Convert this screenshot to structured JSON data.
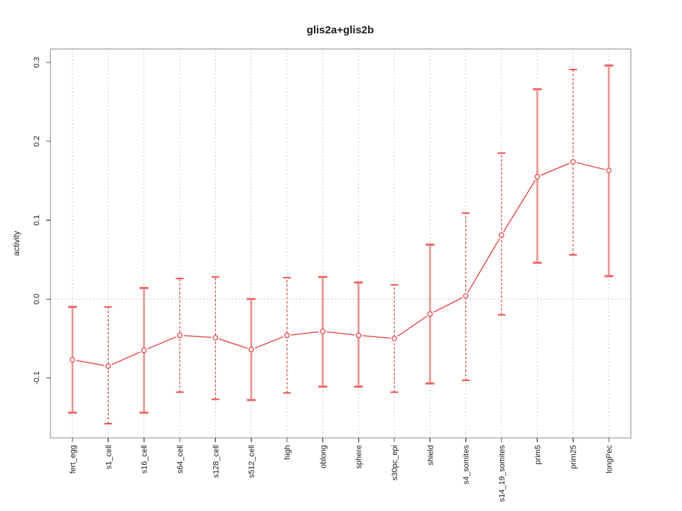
{
  "chart_data": {
    "type": "line",
    "title": "glis2a+glis2b",
    "xlabel": "",
    "ylabel": "activity",
    "categories": [
      "fert_egg",
      "s1_cell",
      "s16_cell",
      "s64_cell",
      "s128_cell",
      "s512_cell",
      "high",
      "oblong",
      "sphere",
      "s30pc_epi",
      "shield",
      "s4_somites",
      "s14_19_somites",
      "prim5",
      "prim25",
      "longPec"
    ],
    "series": [
      {
        "name": "glis2a+glis2b activity",
        "values": [
          -0.077,
          -0.085,
          -0.065,
          -0.046,
          -0.049,
          -0.064,
          -0.046,
          -0.041,
          -0.046,
          -0.05,
          -0.019,
          0.004,
          0.081,
          0.155,
          0.174,
          0.163
        ],
        "error_low": [
          -0.144,
          -0.158,
          -0.144,
          -0.118,
          -0.127,
          -0.128,
          -0.119,
          -0.111,
          -0.111,
          -0.118,
          -0.107,
          -0.103,
          -0.02,
          0.046,
          0.056,
          0.029
        ],
        "error_high": [
          -0.01,
          -0.01,
          0.014,
          0.026,
          0.028,
          0.0,
          0.027,
          0.028,
          0.021,
          0.018,
          0.069,
          0.109,
          0.185,
          0.266,
          0.291,
          0.296
        ],
        "error_bar_styles": [
          "solid",
          "dashed",
          "solid",
          "dashed",
          "dashed",
          "solid",
          "dashed",
          "solid",
          "solid",
          "dashed",
          "solid",
          "dashed",
          "dashed",
          "solid",
          "dashed",
          "solid"
        ]
      }
    ],
    "yticks": [
      -0.1,
      0.0,
      0.1,
      0.2,
      0.3
    ],
    "ytick_labels": [
      "-0.1",
      "0.0",
      "0.1",
      "0.2",
      "0.3"
    ],
    "ylim": [
      -0.176,
      0.317
    ],
    "marker": "open-circle",
    "legend": "none",
    "grid": {
      "vertical_dotted_per_category": true,
      "horizontal_dotted_zero_line": true
    },
    "colors": {
      "series_line": "#ee4343",
      "marker_stroke": "#ee4343",
      "marker_fill": "#ffffff",
      "errorbar_solid": "#f48f8f",
      "errorbar_solid_cap_glow": "#f9a2a2",
      "errorbar_dashed": "#e84040",
      "errorbar_cap": "#ef5252",
      "grid": "#cccccc",
      "zero_line": "#c8c8c8",
      "box": "#888888",
      "tick": "#555555",
      "text": "#1a1a1a",
      "background": "#ffffff"
    }
  }
}
